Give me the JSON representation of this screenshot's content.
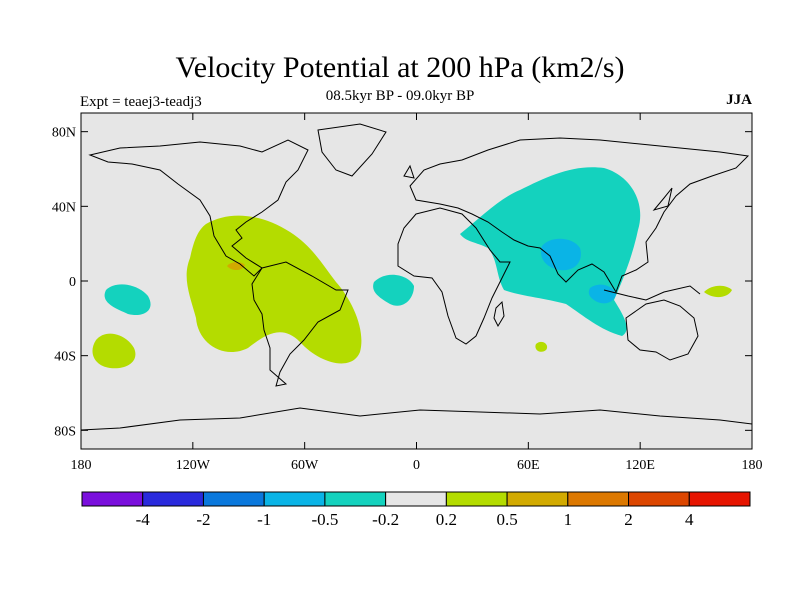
{
  "title": "Velocity Potential at 200 hPa (km2/s)",
  "subtitle": "08.5kyr BP - 09.0kyr BP",
  "experiment": "Expt = teaej3-teadj3",
  "season": "JJA",
  "map": {
    "lon_range": [
      -180,
      180
    ],
    "lat_range": [
      -90,
      90
    ],
    "background_color": "#e6e6e6",
    "lat_ticks": [
      {
        "value": 80,
        "label": "80N"
      },
      {
        "value": 40,
        "label": "40N"
      },
      {
        "value": 0,
        "label": "0"
      },
      {
        "value": -40,
        "label": "40S"
      },
      {
        "value": -80,
        "label": "80S"
      }
    ],
    "lon_ticks": [
      {
        "value": -180,
        "label": "180"
      },
      {
        "value": -120,
        "label": "120W"
      },
      {
        "value": -60,
        "label": "60W"
      },
      {
        "value": 0,
        "label": "0"
      },
      {
        "value": 60,
        "label": "60E"
      },
      {
        "value": 120,
        "label": "120E"
      },
      {
        "value": 180,
        "label": "180"
      }
    ]
  },
  "colorbar": {
    "colors": [
      "#7a0fdc",
      "#2a2adc",
      "#0a78dc",
      "#0ab4e6",
      "#14d2be",
      "#e6e6e6",
      "#b4dc00",
      "#d2aa00",
      "#dc7800",
      "#dc4600",
      "#e61400"
    ],
    "labels": [
      "-4",
      "-2",
      "-1",
      "-0.5",
      "-0.2",
      "0.2",
      "0.5",
      "1",
      "2",
      "4"
    ]
  }
}
